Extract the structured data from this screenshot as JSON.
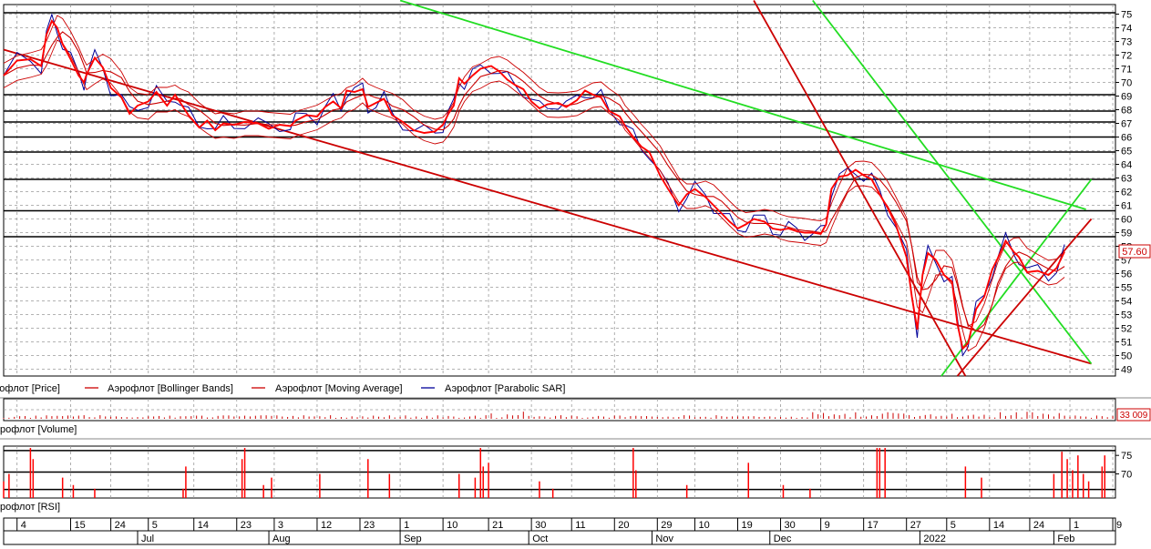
{
  "chart_data": {
    "type": "line",
    "instrument": "Аэрофлот",
    "price_panel": {
      "y_ticks": [
        49,
        50,
        51,
        52,
        53,
        54,
        55,
        56,
        57,
        58,
        59,
        60,
        61,
        62,
        63,
        64,
        65,
        66,
        67,
        68,
        69,
        70,
        71,
        72,
        73,
        74,
        75
      ],
      "ylim": [
        48.5,
        75.7
      ],
      "last_price_label": "57.60",
      "last_price": 57.6,
      "series": [
        {
          "name": "Аэрофлот [Price]",
          "color": "#ff0000"
        },
        {
          "name": "Аэрофлот [Bollinger Bands]",
          "color": "#cc0000"
        },
        {
          "name": "Аэрофлот [Moving Average]",
          "color": "#cc0000"
        },
        {
          "name": "Аэрофлот [Parabolic SAR]",
          "color": "#000099"
        }
      ],
      "price_path": [
        [
          0,
          70.5
        ],
        [
          5,
          71.6
        ],
        [
          10,
          71.7
        ],
        [
          14,
          71.2
        ],
        [
          16,
          73.5
        ],
        [
          18,
          74.5
        ],
        [
          20,
          74.0
        ],
        [
          22,
          72.8
        ],
        [
          25,
          71.7
        ],
        [
          28,
          70.5
        ],
        [
          30,
          70.0
        ],
        [
          31,
          70.6
        ],
        [
          34,
          71.8
        ],
        [
          37,
          71.1
        ],
        [
          40,
          69.6
        ],
        [
          44,
          68.9
        ],
        [
          47,
          67.7
        ],
        [
          50,
          68.3
        ],
        [
          54,
          68.6
        ],
        [
          57,
          69.3
        ],
        [
          61,
          68.3
        ],
        [
          64,
          69.1
        ],
        [
          66,
          68.5
        ],
        [
          69,
          67.6
        ],
        [
          73,
          66.7
        ],
        [
          76,
          67.2
        ],
        [
          79,
          66.5
        ],
        [
          82,
          67.0
        ],
        [
          86,
          66.9
        ],
        [
          90,
          67.1
        ],
        [
          95,
          67.0
        ],
        [
          99,
          66.6
        ],
        [
          103,
          66.9
        ],
        [
          107,
          66.8
        ],
        [
          109,
          67.2
        ],
        [
          113,
          67.6
        ],
        [
          117,
          67.5
        ],
        [
          120,
          68.2
        ],
        [
          123,
          68.6
        ],
        [
          126,
          68.1
        ],
        [
          128,
          69.4
        ],
        [
          131,
          69.3
        ],
        [
          134,
          69.5
        ],
        [
          136,
          68.2
        ],
        [
          139,
          68.5
        ],
        [
          142,
          68.8
        ],
        [
          145,
          67.6
        ],
        [
          149,
          67.1
        ],
        [
          153,
          66.5
        ],
        [
          157,
          66.3
        ],
        [
          161,
          66.4
        ],
        [
          164,
          66.9
        ],
        [
          166,
          67.7
        ],
        [
          168,
          68.3
        ],
        [
          170,
          70.3
        ],
        [
          172,
          69.9
        ],
        [
          175,
          70.5
        ],
        [
          178,
          71.0
        ],
        [
          182,
          71.2
        ],
        [
          185,
          70.8
        ],
        [
          188,
          70.2
        ],
        [
          191,
          69.8
        ],
        [
          194,
          69.5
        ],
        [
          197,
          68.6
        ],
        [
          200,
          68.1
        ],
        [
          203,
          68.4
        ],
        [
          207,
          68.5
        ],
        [
          210,
          68.2
        ],
        [
          214,
          68.7
        ],
        [
          217,
          69.4
        ],
        [
          220,
          69.1
        ],
        [
          223,
          68.9
        ],
        [
          226,
          67.9
        ],
        [
          230,
          67.5
        ],
        [
          232,
          66.8
        ],
        [
          235,
          66.0
        ],
        [
          238,
          65.3
        ],
        [
          241,
          64.9
        ],
        [
          245,
          63.2
        ],
        [
          248,
          62.2
        ],
        [
          252,
          61.0
        ],
        [
          255,
          61.8
        ],
        [
          258,
          62.2
        ],
        [
          262,
          61.6
        ],
        [
          265,
          61.0
        ],
        [
          268,
          60.4
        ],
        [
          271,
          59.8
        ],
        [
          274,
          59.3
        ],
        [
          277,
          59.6
        ],
        [
          280,
          60.0
        ],
        [
          284,
          59.8
        ],
        [
          287,
          59.3
        ],
        [
          290,
          59.2
        ],
        [
          293,
          59.3
        ],
        [
          296,
          59.1
        ],
        [
          299,
          59.0
        ],
        [
          302,
          59.0
        ],
        [
          305,
          58.9
        ],
        [
          307,
          59.6
        ],
        [
          309,
          62.2
        ],
        [
          312,
          63.1
        ],
        [
          315,
          63.2
        ],
        [
          318,
          63.6
        ],
        [
          321,
          63.2
        ],
        [
          324,
          62.9
        ],
        [
          327,
          61.8
        ],
        [
          330,
          60.8
        ],
        [
          333,
          59.6
        ],
        [
          337,
          57.2
        ],
        [
          339,
          54.3
        ],
        [
          341,
          51.9
        ],
        [
          343,
          55.9
        ],
        [
          345,
          57.5
        ],
        [
          348,
          57.0
        ],
        [
          351,
          55.9
        ],
        [
          354,
          55.4
        ],
        [
          356,
          52.3
        ],
        [
          358,
          50.5
        ],
        [
          360,
          50.9
        ],
        [
          363,
          53.4
        ],
        [
          366,
          54.3
        ],
        [
          369,
          56.3
        ],
        [
          371,
          57.1
        ],
        [
          374,
          58.4
        ],
        [
          377,
          57.6
        ],
        [
          379,
          57.2
        ],
        [
          382,
          56.1
        ],
        [
          386,
          56.2
        ],
        [
          390,
          55.9
        ],
        [
          393,
          56.4
        ],
        [
          396,
          57.6
        ]
      ],
      "trend_lines": [
        {
          "color": "#22dd22",
          "from": [
            148,
            76.0
          ],
          "to": [
            404,
            60.7
          ]
        },
        {
          "color": "#cc0000",
          "from": [
            0,
            72.4
          ],
          "to": [
            406,
            49.4
          ]
        },
        {
          "color": "#cc0000",
          "from": [
            280,
            76.0
          ],
          "to": [
            359,
            48.5
          ]
        },
        {
          "color": "#22dd22",
          "from": [
            302,
            76.0
          ],
          "to": [
            406,
            49.4
          ]
        },
        {
          "color": "#22dd22",
          "from": [
            350,
            48.5
          ],
          "to": [
            406,
            62.9
          ]
        },
        {
          "color": "#cc0000",
          "from": [
            356,
            48.5
          ],
          "to": [
            406,
            60.0
          ]
        }
      ],
      "support_levels": [
        75.1,
        69.1,
        67.9,
        67.1,
        66.0,
        64.9,
        62.9,
        60.6,
        58.7
      ]
    },
    "volume_panel": {
      "label": "рофлот [Volume]",
      "last_value_label": "33 009"
    },
    "rsi_panel": {
      "label": "рофлот [RSI]",
      "y_ticks": [
        70,
        75
      ],
      "ylim": [
        63.5,
        77.5
      ],
      "levels": [
        76.3,
        70.5,
        65.8
      ]
    },
    "x_axis": {
      "day_ticks": [
        {
          "t": 5,
          "label": "4"
        },
        {
          "t": 25,
          "label": "15"
        },
        {
          "t": 40,
          "label": "24"
        },
        {
          "t": 54,
          "label": "5"
        },
        {
          "t": 71,
          "label": "14"
        },
        {
          "t": 87,
          "label": "23"
        },
        {
          "t": 101,
          "label": "3"
        },
        {
          "t": 117,
          "label": "12"
        },
        {
          "t": 133,
          "label": "23"
        },
        {
          "t": 148,
          "label": "1"
        },
        {
          "t": 164,
          "label": "10"
        },
        {
          "t": 181,
          "label": "21"
        },
        {
          "t": 197,
          "label": "30"
        },
        {
          "t": 212,
          "label": "11"
        },
        {
          "t": 228,
          "label": "20"
        },
        {
          "t": 244,
          "label": "29"
        },
        {
          "t": 258,
          "label": "10"
        },
        {
          "t": 274,
          "label": "19"
        },
        {
          "t": 290,
          "label": "30"
        },
        {
          "t": 305,
          "label": "9"
        },
        {
          "t": 321,
          "label": "17"
        },
        {
          "t": 337,
          "label": "27"
        },
        {
          "t": 352,
          "label": "5"
        },
        {
          "t": 368,
          "label": "14"
        },
        {
          "t": 383,
          "label": "24"
        },
        {
          "t": 398,
          "label": "1"
        },
        {
          "t": 414,
          "label": "9"
        }
      ],
      "month_ticks": [
        {
          "t": 50,
          "label": "Jul"
        },
        {
          "t": 99,
          "label": "Aug"
        },
        {
          "t": 148,
          "label": "Sep"
        },
        {
          "t": 196,
          "label": "Oct"
        },
        {
          "t": 242,
          "label": "Nov"
        },
        {
          "t": 286,
          "label": "Dec"
        },
        {
          "t": 342,
          "label": "2022"
        },
        {
          "t": 392,
          "label": "Feb"
        }
      ]
    },
    "grid": true
  }
}
